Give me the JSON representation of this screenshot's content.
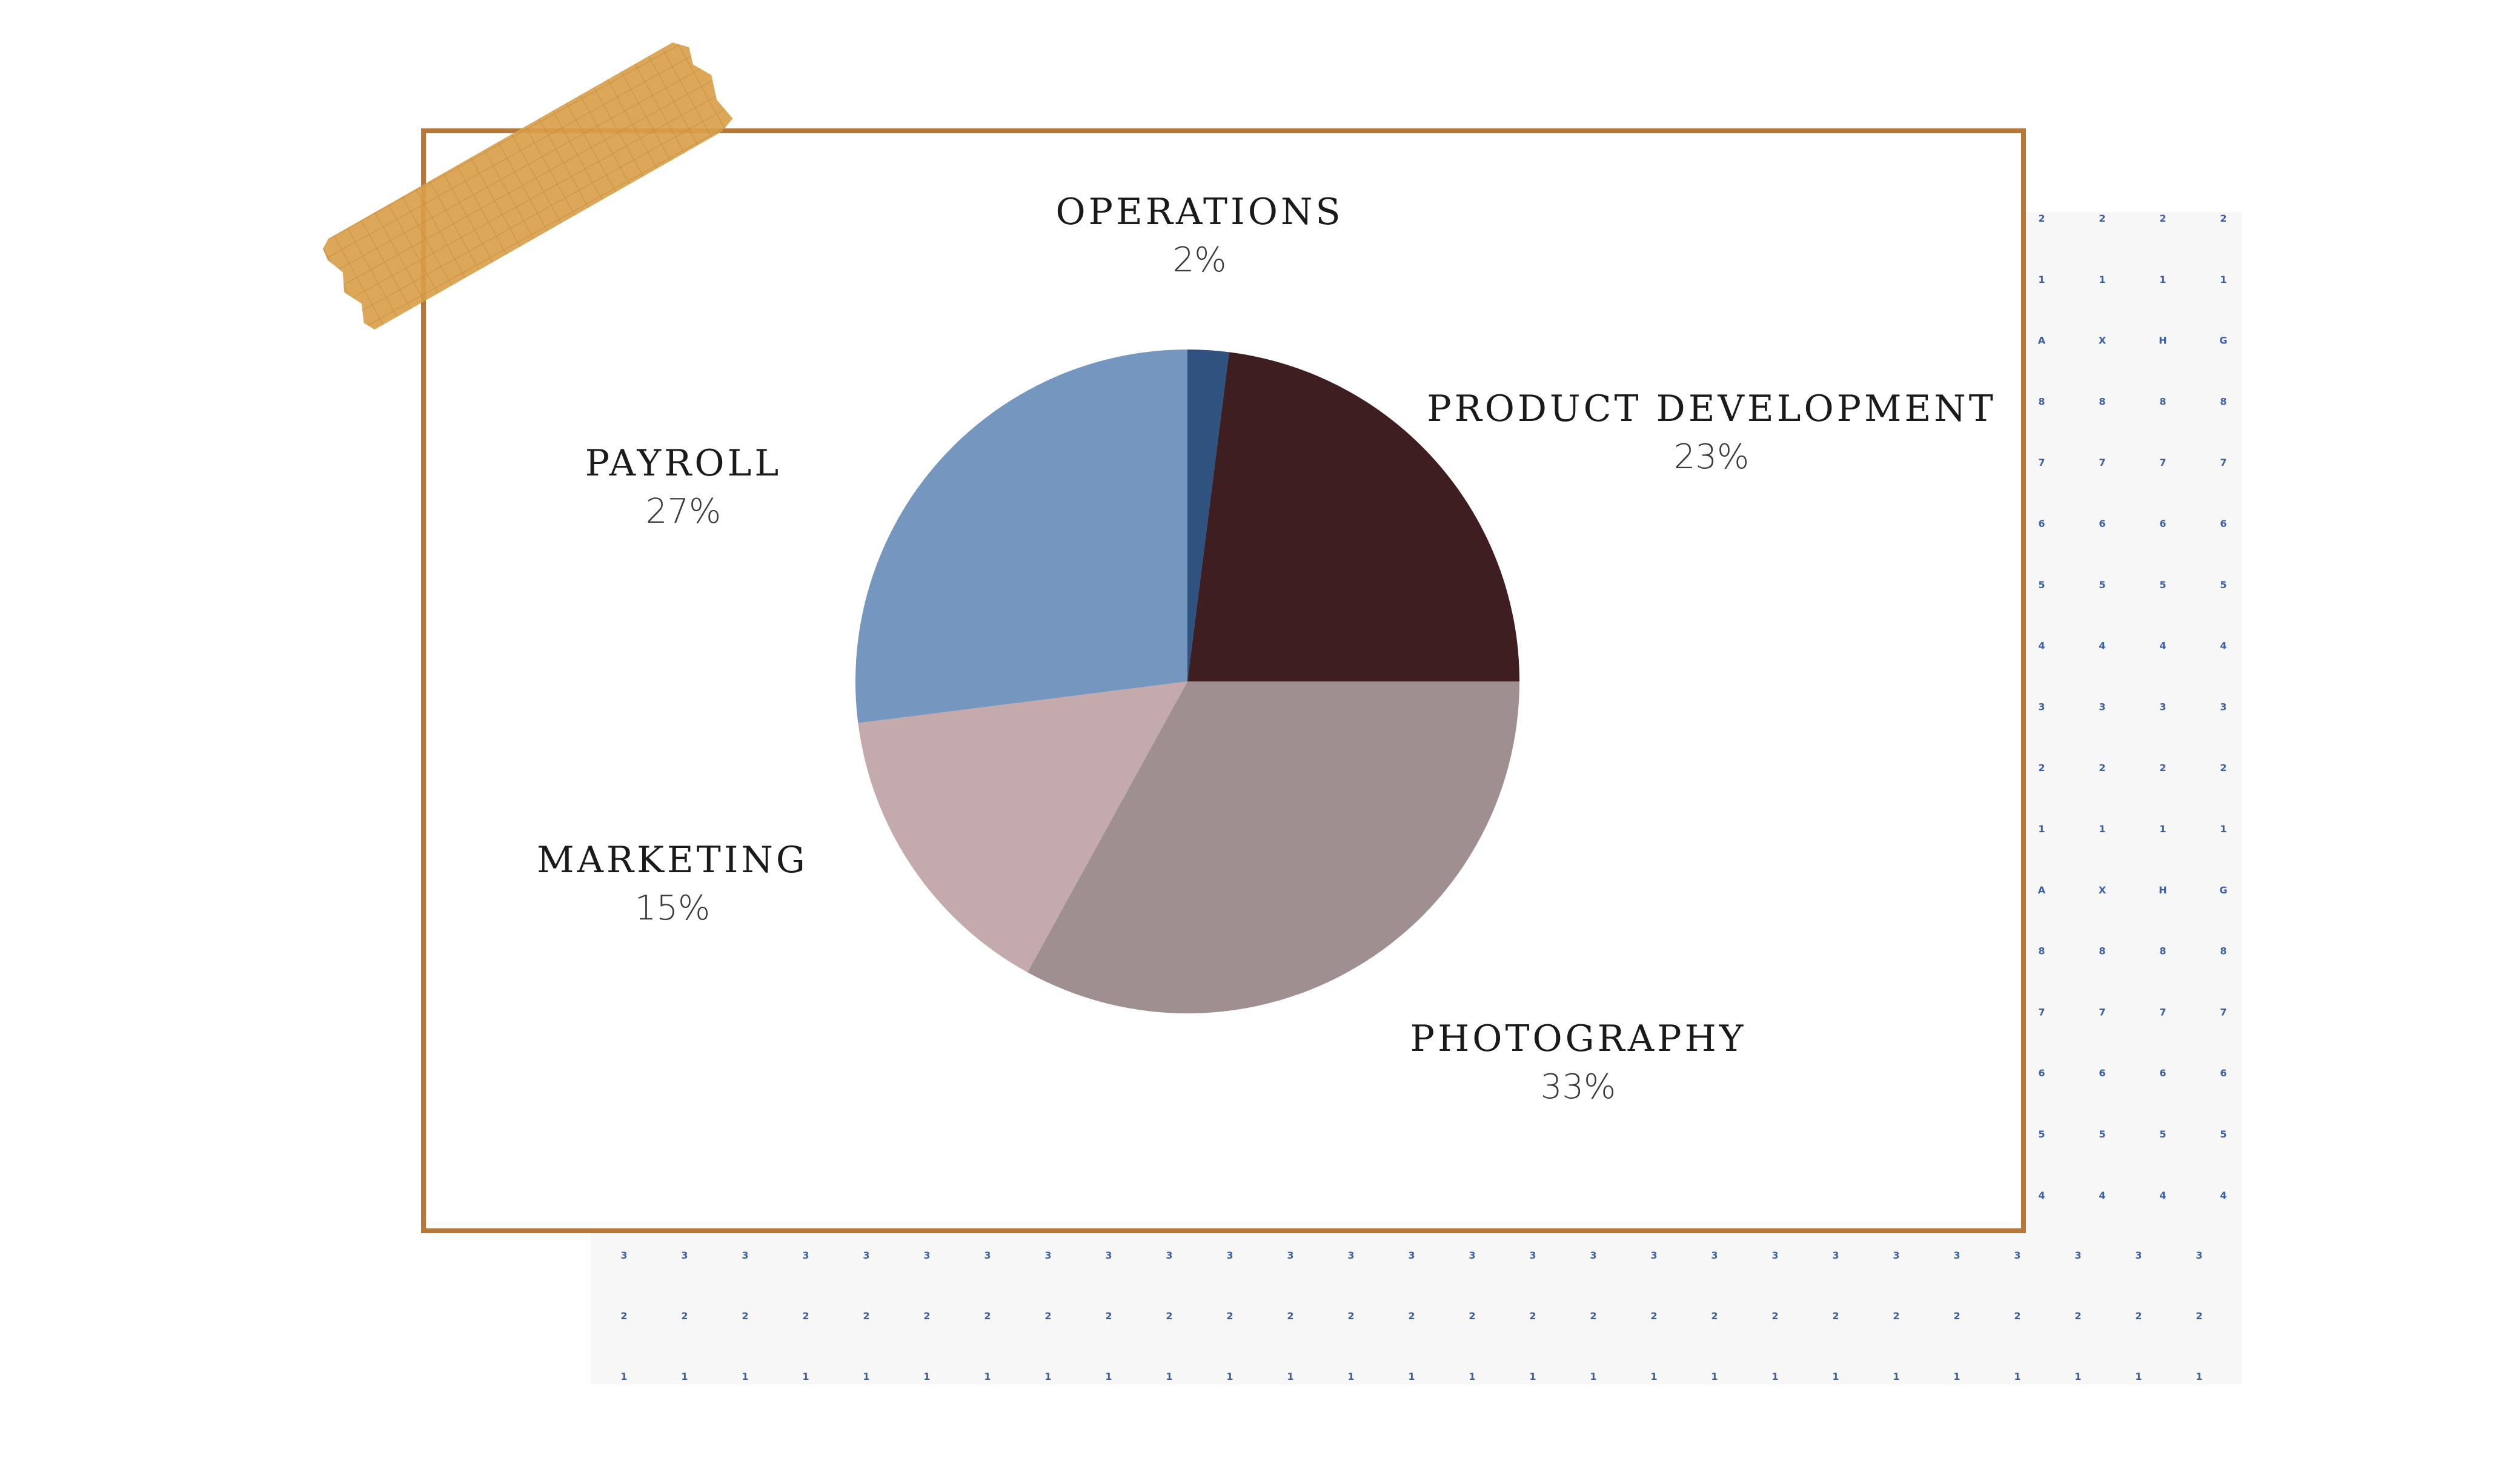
{
  "background_grid": {
    "rows_right": [
      "2",
      "1",
      "A X H G",
      "8",
      "7",
      "6",
      "5",
      "4",
      "3",
      "2",
      "1",
      "A X H G",
      "8",
      "7",
      "6",
      "5",
      "4"
    ],
    "bottom_rows": [
      "3",
      "2",
      "1"
    ],
    "dot_color": "#3a5fa8"
  },
  "colors": {
    "frame": "#b5773a",
    "tape": "#d9a04a"
  },
  "chart_data": {
    "type": "pie",
    "title": "",
    "slices": [
      {
        "label": "OPERATIONS",
        "pct_label": "2%",
        "value": 2,
        "color": "#2f527f"
      },
      {
        "label": "PRODUCT DEVELOPMENT",
        "pct_label": "23%",
        "value": 23,
        "color": "#3e1e20"
      },
      {
        "label": "PHOTOGRAPHY",
        "pct_label": "33%",
        "value": 33,
        "color": "#a08f90"
      },
      {
        "label": "MARKETING",
        "pct_label": "15%",
        "value": 15,
        "color": "#c5aaad"
      },
      {
        "label": "PAYROLL",
        "pct_label": "27%",
        "value": 27,
        "color": "#7596be"
      }
    ]
  }
}
